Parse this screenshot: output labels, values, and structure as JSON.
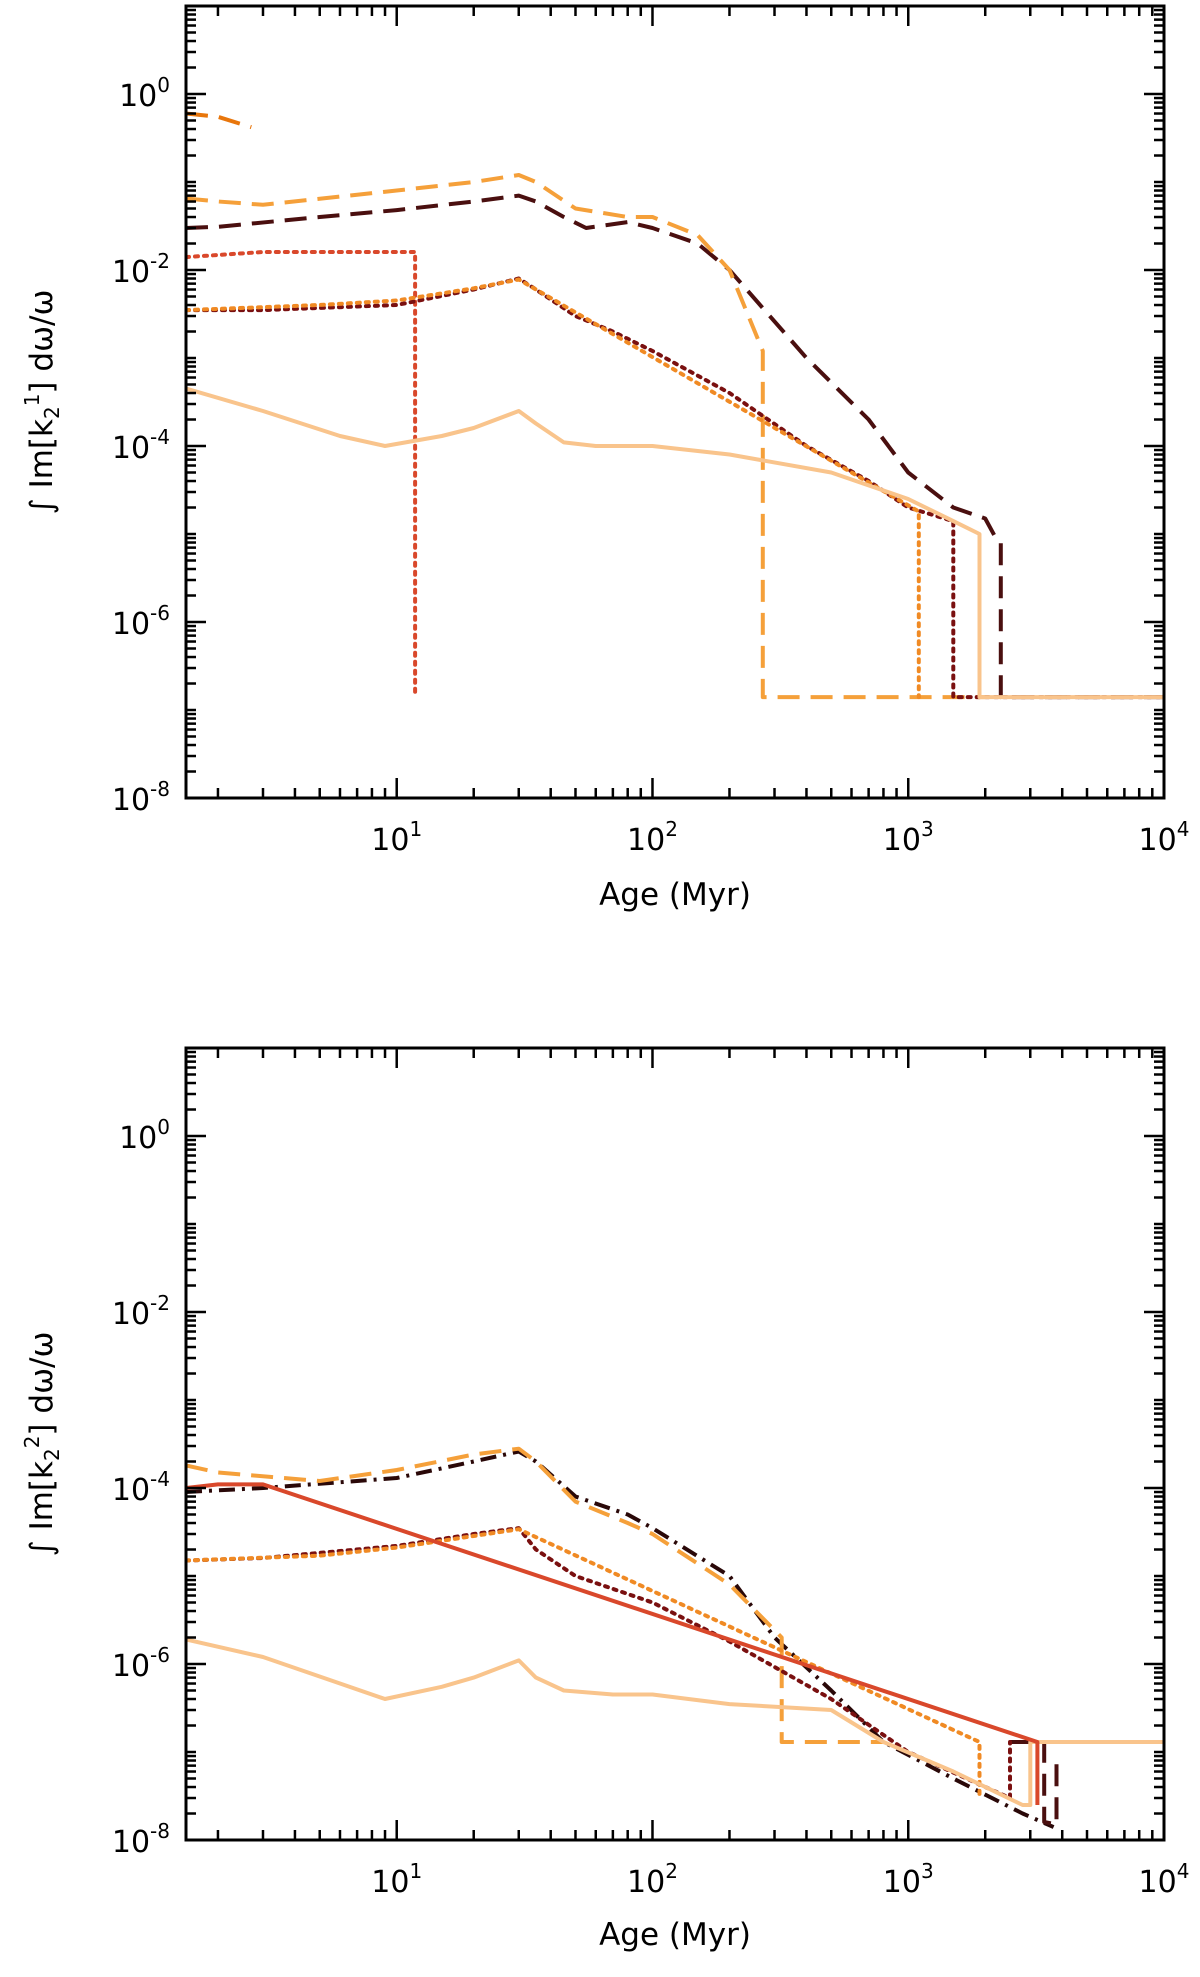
{
  "chart_data": [
    {
      "type": "line",
      "title": "",
      "xlabel": "Age (Myr)",
      "ylabel": "∫ Im[k2¹] dω/ω",
      "ylabel_parts": {
        "prefix": "∫ Im[k",
        "sub": "2",
        "sup": "1",
        "suffix": "] dω/ω"
      },
      "xscale": "log",
      "yscale": "log",
      "xlim": [
        1.5,
        10000
      ],
      "ylim": [
        1e-08,
        10
      ],
      "x_ticks": [
        {
          "base": "10",
          "exp": "1",
          "value": 10
        },
        {
          "base": "10",
          "exp": "2",
          "value": 100
        },
        {
          "base": "10",
          "exp": "3",
          "value": 1000
        },
        {
          "base": "10",
          "exp": "4",
          "value": 10000
        }
      ],
      "y_ticks": [
        {
          "base": "10",
          "exp": "0",
          "value": 1
        },
        {
          "base": "10",
          "exp": "-2",
          "value": 0.01
        },
        {
          "base": "10",
          "exp": "-4",
          "value": 0.0001
        },
        {
          "base": "10",
          "exp": "-6",
          "value": 1e-06
        },
        {
          "base": "10",
          "exp": "-8",
          "value": 1e-08
        }
      ],
      "series": [
        {
          "name": "dashed (dark brown)",
          "color": "#4a0f0f",
          "style": "dashed",
          "points": [
            [
              1.5,
              0.03
            ],
            [
              2,
              0.031
            ],
            [
              5,
              0.04
            ],
            [
              10,
              0.048
            ],
            [
              20,
              0.06
            ],
            [
              30,
              0.07
            ],
            [
              35,
              0.06
            ],
            [
              45,
              0.04
            ],
            [
              55,
              0.03
            ],
            [
              80,
              0.035
            ],
            [
              100,
              0.03
            ],
            [
              150,
              0.02
            ],
            [
              200,
              0.01
            ],
            [
              400,
              0.001
            ],
            [
              700,
              0.0002
            ],
            [
              1000,
              5e-05
            ],
            [
              1500,
              2e-05
            ],
            [
              2000,
              1.5e-05
            ],
            [
              2200,
              9e-06
            ],
            [
              2300,
              8e-06
            ],
            [
              2300,
              1.4e-07
            ],
            [
              10000,
              1.4e-07
            ]
          ]
        },
        {
          "name": "dashed (orange, short)",
          "color": "#e8760c",
          "style": "dashed",
          "points": [
            [
              1.5,
              0.6
            ],
            [
              2,
              0.55
            ],
            [
              2.7,
              0.42
            ]
          ]
        },
        {
          "name": "dashed (light orange)",
          "color": "#f5a03a",
          "style": "dashed",
          "points": [
            [
              1.5,
              0.065
            ],
            [
              2,
              0.06
            ],
            [
              3,
              0.055
            ],
            [
              10,
              0.08
            ],
            [
              20,
              0.1
            ],
            [
              30,
              0.12
            ],
            [
              35,
              0.1
            ],
            [
              50,
              0.05
            ],
            [
              80,
              0.04
            ],
            [
              100,
              0.04
            ],
            [
              150,
              0.025
            ],
            [
              200,
              0.01
            ],
            [
              270,
              0.0012
            ],
            [
              270,
              1.4e-07
            ],
            [
              2000,
              1.4e-07
            ]
          ]
        },
        {
          "name": "dotted (red-orange)",
          "color": "#d9482b",
          "style": "dotted",
          "points": [
            [
              1.5,
              0.014
            ],
            [
              3,
              0.016
            ],
            [
              11.8,
              0.016
            ],
            [
              11.8,
              1.4e-07
            ]
          ]
        },
        {
          "name": "dotted (dark red)",
          "color": "#7a1010",
          "style": "dotted",
          "points": [
            [
              1.5,
              0.0035
            ],
            [
              3,
              0.0035
            ],
            [
              10,
              0.004
            ],
            [
              20,
              0.006
            ],
            [
              30,
              0.008
            ],
            [
              35,
              0.006
            ],
            [
              50,
              0.003
            ],
            [
              70,
              0.002
            ],
            [
              100,
              0.0012
            ],
            [
              200,
              0.0004
            ],
            [
              400,
              0.0001
            ],
            [
              700,
              4e-05
            ],
            [
              1000,
              2e-05
            ],
            [
              1500,
              1.4e-05
            ],
            [
              1500,
              1.4e-07
            ],
            [
              10000,
              1.4e-07
            ]
          ]
        },
        {
          "name": "dotted (orange)",
          "color": "#f08a24",
          "style": "dotted",
          "points": [
            [
              1.5,
              0.0035
            ],
            [
              5,
              0.004
            ],
            [
              10,
              0.0045
            ],
            [
              20,
              0.0062
            ],
            [
              30,
              0.0078
            ],
            [
              1100,
              1.8e-05
            ],
            [
              1100,
              1.4e-07
            ]
          ]
        },
        {
          "name": "solid (light orange)",
          "color": "#f9c48c",
          "style": "solid",
          "points": [
            [
              1.5,
              0.00045
            ],
            [
              3,
              0.00025
            ],
            [
              6,
              0.00013
            ],
            [
              9,
              0.0001
            ],
            [
              15,
              0.00013
            ],
            [
              20,
              0.00016
            ],
            [
              30,
              0.00025
            ],
            [
              35,
              0.00018
            ],
            [
              45,
              0.00011
            ],
            [
              60,
              0.0001
            ],
            [
              100,
              0.0001
            ],
            [
              200,
              8e-05
            ],
            [
              500,
              5e-05
            ],
            [
              1000,
              2.5e-05
            ],
            [
              1500,
              1.4e-05
            ],
            [
              1900,
              1e-05
            ],
            [
              1900,
              1.4e-07
            ],
            [
              10000,
              1.4e-07
            ]
          ]
        }
      ]
    },
    {
      "type": "line",
      "title": "",
      "xlabel": "Age (Myr)",
      "ylabel": "∫ Im[k2²] dω/ω",
      "ylabel_parts": {
        "prefix": "∫ Im[k",
        "sub": "2",
        "sup": "2",
        "suffix": "] dω/ω"
      },
      "xscale": "log",
      "yscale": "log",
      "xlim": [
        1.5,
        10000
      ],
      "ylim": [
        1e-08,
        10
      ],
      "x_ticks": [
        {
          "base": "10",
          "exp": "1",
          "value": 10
        },
        {
          "base": "10",
          "exp": "2",
          "value": 100
        },
        {
          "base": "10",
          "exp": "3",
          "value": 1000
        },
        {
          "base": "10",
          "exp": "4",
          "value": 10000
        }
      ],
      "y_ticks": [
        {
          "base": "10",
          "exp": "0",
          "value": 1
        },
        {
          "base": "10",
          "exp": "-2",
          "value": 0.01
        },
        {
          "base": "10",
          "exp": "-4",
          "value": 0.0001
        },
        {
          "base": "10",
          "exp": "-6",
          "value": 1e-06
        },
        {
          "base": "10",
          "exp": "-8",
          "value": 1e-08
        }
      ],
      "series": [
        {
          "name": "dash-dot (dark)",
          "color": "#2a0808",
          "style": "dashdot",
          "points": [
            [
              1.5,
              9e-05
            ],
            [
              3,
              0.0001
            ],
            [
              10,
              0.00013
            ],
            [
              20,
              0.0002
            ],
            [
              30,
              0.00026
            ],
            [
              35,
              0.0002
            ],
            [
              50,
              8e-05
            ],
            [
              80,
              5e-05
            ],
            [
              100,
              3.5e-05
            ],
            [
              200,
              1e-05
            ],
            [
              300,
              2e-06
            ],
            [
              500,
              5e-07
            ],
            [
              800,
              1.3e-07
            ],
            [
              1500,
              5e-08
            ],
            [
              2800,
              2e-08
            ],
            [
              3700,
              1.4e-08
            ]
          ]
        },
        {
          "name": "dashed (light orange)",
          "color": "#f5a03a",
          "style": "dashed",
          "points": [
            [
              1.5,
              0.00018
            ],
            [
              2,
              0.00015
            ],
            [
              5,
              0.00012
            ],
            [
              10,
              0.00016
            ],
            [
              20,
              0.00024
            ],
            [
              30,
              0.00028
            ],
            [
              35,
              0.0002
            ],
            [
              50,
              7e-05
            ],
            [
              80,
              4e-05
            ],
            [
              100,
              3e-05
            ],
            [
              200,
              8e-06
            ],
            [
              320,
              2e-06
            ],
            [
              320,
              1.3e-07
            ],
            [
              800,
              1.3e-07
            ]
          ]
        },
        {
          "name": "dashed (dark brown)",
          "color": "#4a0f0f",
          "style": "dashed",
          "points": [
            [
              2500,
              1.3e-07
            ],
            [
              3400,
              1.3e-07
            ],
            [
              3400,
              1.6e-08
            ],
            [
              3800,
              1.5e-08
            ],
            [
              3800,
              8e-08
            ]
          ]
        },
        {
          "name": "dotted (dark red)",
          "color": "#7a1010",
          "style": "dotted",
          "points": [
            [
              1.5,
              1.5e-05
            ],
            [
              3,
              1.6e-05
            ],
            [
              10,
              2.2e-05
            ],
            [
              20,
              3e-05
            ],
            [
              30,
              3.5e-05
            ],
            [
              35,
              2e-05
            ],
            [
              50,
              1e-05
            ],
            [
              100,
              5e-06
            ],
            [
              200,
              1.8e-06
            ],
            [
              500,
              4e-07
            ],
            [
              1000,
              1e-07
            ],
            [
              2000,
              4e-08
            ],
            [
              2500,
              3e-08
            ],
            [
              2500,
              1.3e-07
            ]
          ]
        },
        {
          "name": "dotted (orange)",
          "color": "#f08a24",
          "style": "dotted",
          "points": [
            [
              1.5,
              1.5e-05
            ],
            [
              5,
              1.7e-05
            ],
            [
              10,
              2.1e-05
            ],
            [
              30,
              3.4e-05
            ],
            [
              1900,
              1.3e-07
            ],
            [
              1900,
              3e-08
            ]
          ]
        },
        {
          "name": "solid (light orange)",
          "color": "#f9c48c",
          "style": "solid",
          "points": [
            [
              1.5,
              1.9e-06
            ],
            [
              3,
              1.2e-06
            ],
            [
              6,
              6e-07
            ],
            [
              9,
              4e-07
            ],
            [
              15,
              5.5e-07
            ],
            [
              20,
              7e-07
            ],
            [
              30,
              1.1e-06
            ],
            [
              35,
              7e-07
            ],
            [
              45,
              5e-07
            ],
            [
              70,
              4.5e-07
            ],
            [
              100,
              4.5e-07
            ],
            [
              200,
              3.5e-07
            ],
            [
              500,
              3e-07
            ],
            [
              800,
              1.3e-07
            ],
            [
              1500,
              6e-08
            ],
            [
              2800,
              2.5e-08
            ],
            [
              3000,
              2.5e-08
            ],
            [
              3000,
              1.3e-07
            ],
            [
              10000,
              1.3e-07
            ]
          ]
        },
        {
          "name": "solid (red-orange)",
          "color": "#d9482b",
          "style": "solid",
          "points": [
            [
              1.5,
              0.0001
            ],
            [
              2,
              0.00011
            ],
            [
              3,
              0.00011
            ],
            [
              3200,
              1.3e-07
            ],
            [
              3200,
              2.5e-08
            ]
          ]
        }
      ]
    }
  ]
}
